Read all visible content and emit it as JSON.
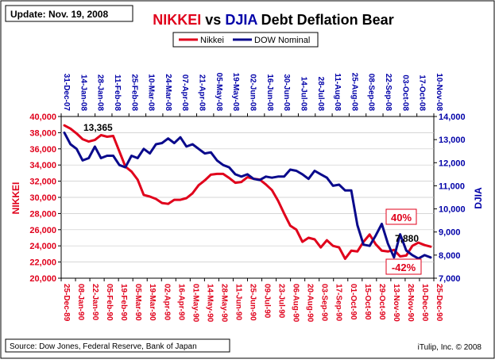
{
  "update_label": "Update: Nov. 19, 2008",
  "title": {
    "part1": "NIKKEI",
    "part2": " vs ",
    "part3": "DJIA",
    "part4": " Debt Deflation Bear",
    "colors": {
      "nikkei": "#e0001b",
      "djia": "#0000a8",
      "rest": "#000000"
    }
  },
  "source": "Source: Dow Jones, Federal Reserve, Bank of Japan",
  "credit": "iTulip, Inc. © 2008",
  "chart_data": {
    "type": "line",
    "left_axis": {
      "label": "NIKKEI",
      "ylim": [
        20000,
        40000
      ],
      "ticks": [
        "20,000",
        "22,000",
        "24,000",
        "26,000",
        "28,000",
        "30,000",
        "32,000",
        "34,000",
        "36,000",
        "38,000",
        "40,000"
      ]
    },
    "right_axis": {
      "label": "DJIA",
      "ylim": [
        7000,
        14000
      ],
      "ticks": [
        "7,000",
        "8,000",
        "9,000",
        "10,000",
        "11,000",
        "12,000",
        "13,000",
        "14,000"
      ]
    },
    "bottom_axis": {
      "ticks": [
        "25-Dec-89",
        "08-Jan-90",
        "22-Jan-90",
        "05-Feb-90",
        "19-Feb-90",
        "05-Mar-90",
        "19-Mar-90",
        "02-Apr-90",
        "16-Apr-90",
        "01-May-90",
        "14-May-90",
        "28-May-90",
        "11-Jun-90",
        "25-Jun-90",
        "09-Jul-90",
        "23-Jul-90",
        "06-Aug-90",
        "20-Aug-90",
        "03-Sep-90",
        "17-Sep-90",
        "01-Oct-90",
        "15-Oct-90",
        "29-Oct-90",
        "13-Nov-90",
        "26-Nov-90",
        "10-Dec-90",
        "25-Dec-90"
      ]
    },
    "top_axis": {
      "ticks": [
        "31-Dec-07",
        "14-Jan-08",
        "28-Jan-08",
        "11-Feb-08",
        "25-Feb-08",
        "10-Mar-08",
        "24-Mar-08",
        "07-Apr-08",
        "21-Apr-08",
        "05-May-08",
        "19-May-08",
        "02-Jun-08",
        "16-Jun-08",
        "30-Jun-08",
        "14-Jul-08",
        "28-Jul-08",
        "11-Aug-08",
        "25-Aug-08",
        "08-Sep-08",
        "22-Sep-08",
        "03-Oct-08",
        "17-Oct-08",
        "10-Nov-08"
      ]
    },
    "series": [
      {
        "name": "Nikkei",
        "color": "#e0001b",
        "axis": "left",
        "values": [
          38900,
          38500,
          37900,
          37200,
          36900,
          37100,
          37700,
          37500,
          37600,
          35700,
          33800,
          33200,
          32200,
          30300,
          30100,
          29800,
          29300,
          29200,
          29700,
          29700,
          29900,
          30500,
          31500,
          32100,
          32800,
          32900,
          32900,
          32400,
          31800,
          31900,
          32500,
          32300,
          32200,
          31600,
          30900,
          29600,
          28000,
          26500,
          26000,
          24500,
          25000,
          24800,
          23800,
          24700,
          24000,
          23800,
          22400,
          23400,
          23300,
          24500,
          25400,
          24200,
          23400,
          23300,
          23500,
          22700,
          22800,
          24000,
          24400,
          24100,
          23900
        ]
      },
      {
        "name": "DOW Nominal",
        "color": "#0a0a8c",
        "axis": "right",
        "values": [
          13300,
          12800,
          12600,
          12100,
          12200,
          12700,
          12200,
          12300,
          12300,
          11900,
          11800,
          12300,
          12200,
          12600,
          12400,
          12800,
          12850,
          13050,
          12850,
          13100,
          12700,
          12800,
          12600,
          12400,
          12450,
          12100,
          11900,
          11800,
          11500,
          11400,
          11500,
          11300,
          11250,
          11400,
          11350,
          11400,
          11400,
          11700,
          11650,
          11500,
          11300,
          11650,
          11500,
          11350,
          11000,
          11050,
          10800,
          10800,
          9300,
          8450,
          8400,
          8850,
          9350,
          8500,
          7900,
          8900,
          8200,
          8000,
          7850,
          8000,
          7900
        ]
      }
    ],
    "annotations": [
      {
        "text": "13,365",
        "color": "#000000"
      },
      {
        "text": "7,880",
        "color": "#000000"
      },
      {
        "text": "40%",
        "color": "#e0001b"
      },
      {
        "text": "-42%",
        "color": "#e0001b"
      }
    ],
    "legend_position": "top-center"
  }
}
